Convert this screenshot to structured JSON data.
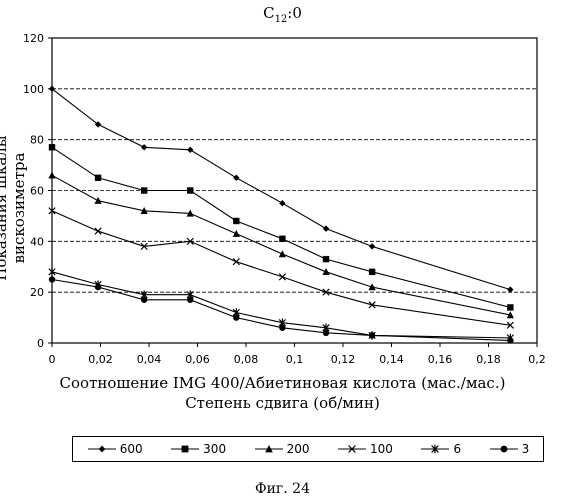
{
  "chart_data": {
    "type": "line",
    "title": "C12:0",
    "title_main": "C",
    "title_sub": "12",
    "title_tail": ":0",
    "xlabel": "Соотношение IMG 400/Абиетиновая кислота (мас./мас.)",
    "xlabel2": "Степень сдвига (об/мин)",
    "ylabel": "Показания шкалы вискозиметра",
    "xlim": [
      0,
      0.2
    ],
    "ylim": [
      0,
      120
    ],
    "x_ticks": [
      0,
      0.02,
      0.04,
      0.06,
      0.08,
      0.1,
      0.12,
      0.14,
      0.16,
      0.18,
      0.2
    ],
    "x_tick_labels": [
      "0",
      "0,02",
      "0,04",
      "0,06",
      "0,08",
      "0,1",
      "0,12",
      "0,14",
      "0,16",
      "0,18",
      "0,2"
    ],
    "y_ticks": [
      0,
      20,
      40,
      60,
      80,
      100,
      120
    ],
    "y_tick_labels": [
      "0",
      "20",
      "40",
      "60",
      "80",
      "100",
      "120"
    ],
    "grid": "horizontal-dashed",
    "legend_position": "bottom",
    "series": [
      {
        "name": "600",
        "marker": "diamond",
        "x": [
          0,
          0.019,
          0.038,
          0.057,
          0.076,
          0.095,
          0.113,
          0.132,
          0.189
        ],
        "y": [
          100,
          86,
          77,
          76,
          65,
          55,
          45,
          38,
          21
        ]
      },
      {
        "name": "300",
        "marker": "square",
        "x": [
          0,
          0.019,
          0.038,
          0.057,
          0.076,
          0.095,
          0.113,
          0.132,
          0.189
        ],
        "y": [
          77,
          65,
          60,
          60,
          48,
          41,
          33,
          28,
          14
        ]
      },
      {
        "name": "200",
        "marker": "triangle",
        "x": [
          0,
          0.019,
          0.038,
          0.057,
          0.076,
          0.095,
          0.113,
          0.132,
          0.189
        ],
        "y": [
          66,
          56,
          52,
          51,
          43,
          35,
          28,
          22,
          11
        ]
      },
      {
        "name": "100",
        "marker": "x",
        "x": [
          0,
          0.019,
          0.038,
          0.057,
          0.076,
          0.095,
          0.113,
          0.132,
          0.189
        ],
        "y": [
          52,
          44,
          38,
          40,
          32,
          26,
          20,
          15,
          7
        ]
      },
      {
        "name": "6",
        "marker": "asterisk",
        "x": [
          0,
          0.019,
          0.038,
          0.057,
          0.076,
          0.095,
          0.113,
          0.132,
          0.189
        ],
        "y": [
          28,
          23,
          19,
          19,
          12,
          8,
          6,
          3,
          2
        ]
      },
      {
        "name": "3",
        "marker": "circle",
        "x": [
          0,
          0.019,
          0.038,
          0.057,
          0.076,
          0.095,
          0.113,
          0.132,
          0.189
        ],
        "y": [
          25,
          22,
          17,
          17,
          10,
          6,
          4,
          3,
          1
        ]
      }
    ]
  },
  "figure_caption": "Фиг. 24"
}
